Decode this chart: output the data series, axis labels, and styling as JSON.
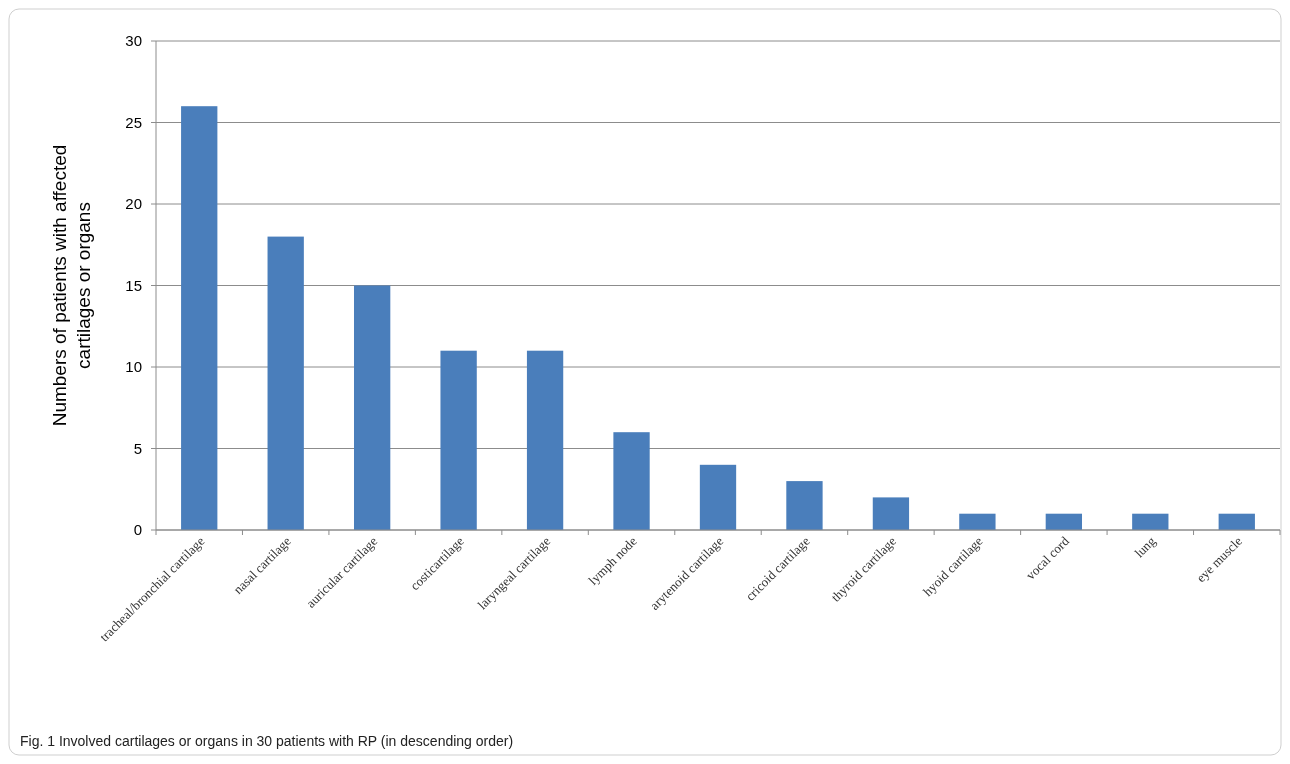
{
  "chart_data": {
    "type": "bar",
    "ylabel": "Numbers of patients with affected cartilages or organs",
    "categories": [
      "tracheal/bronchial cartilage",
      "nasal cartilage",
      "auricular cartilage",
      "costicartilage",
      "laryngeal cartilage",
      "lymph node",
      "arytenoid cartilage",
      "cricoid cartilage",
      "thyroid cartilage",
      "hyoid cartilage",
      "vocal cord",
      "lung",
      "eye muscle"
    ],
    "values": [
      26,
      18,
      15,
      11,
      11,
      6,
      4,
      3,
      2,
      1,
      1,
      1,
      1
    ],
    "color": "#4a7ebb",
    "ylim": [
      0,
      30
    ],
    "yticks": [
      0,
      5,
      10,
      15,
      20,
      25,
      30
    ],
    "grid": "y",
    "annotations": [
      "Fig. 1 Involved cartilages or organs in 30 patients with RP (in descending order)"
    ]
  }
}
